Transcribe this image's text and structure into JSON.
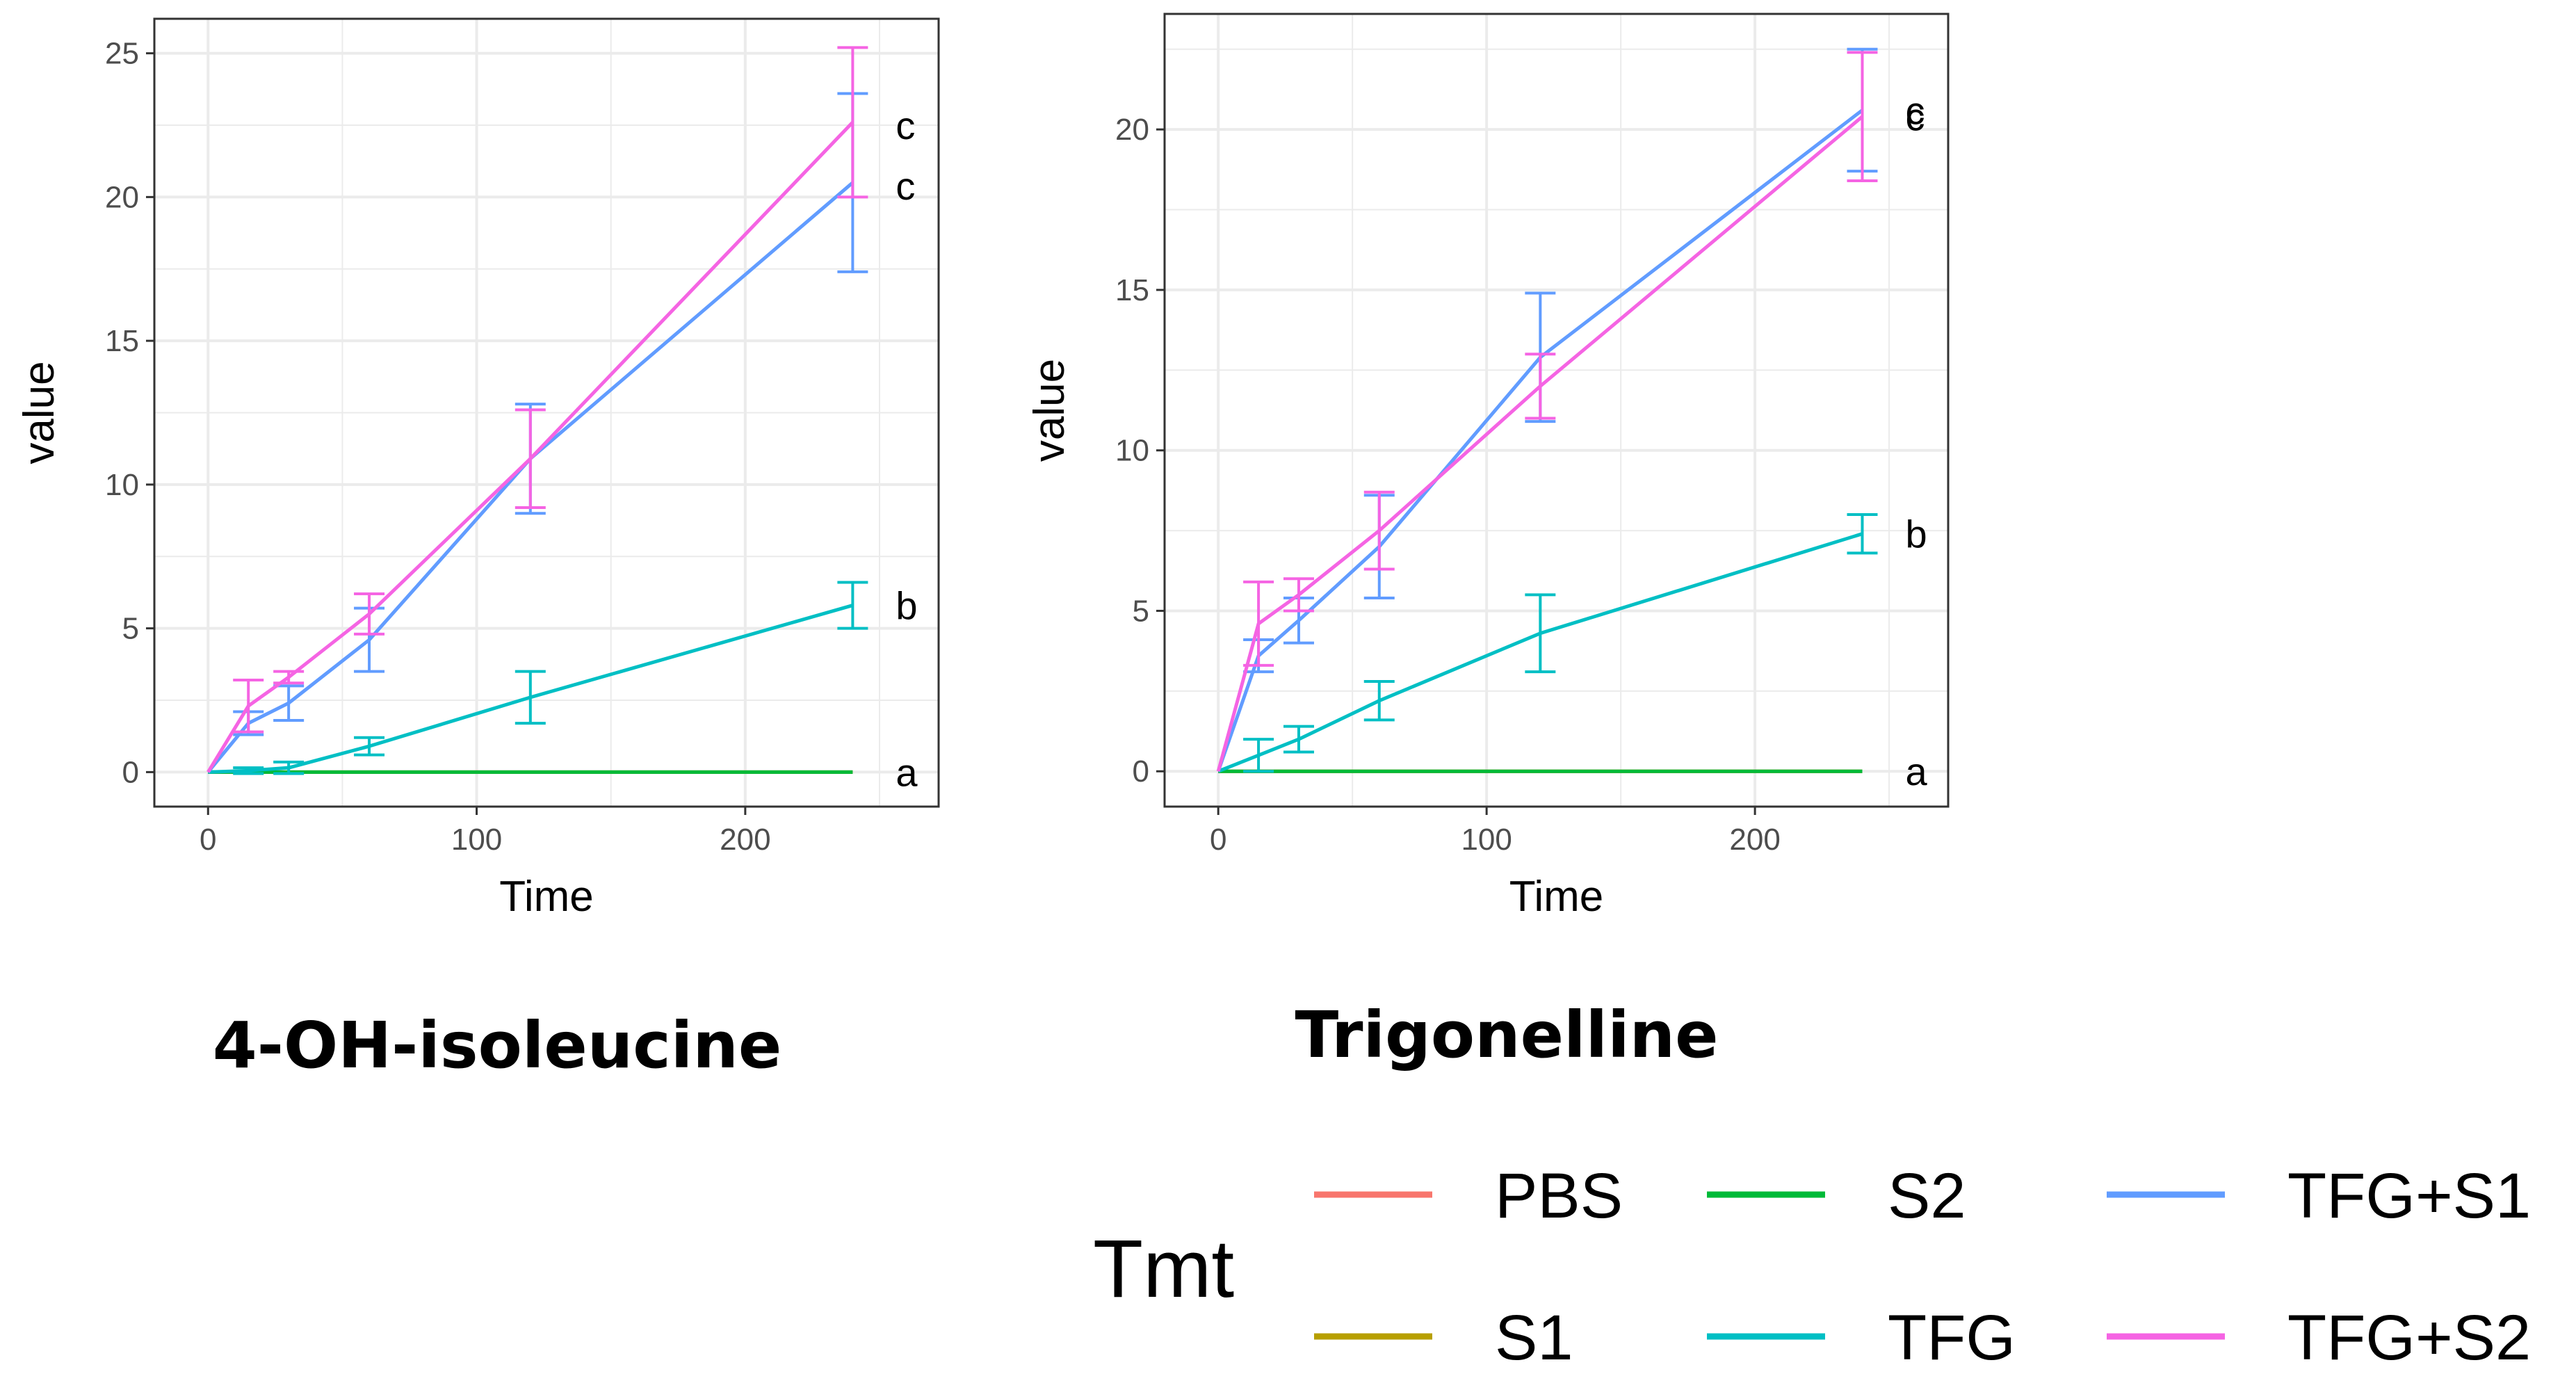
{
  "chart_data": [
    {
      "type": "line",
      "title": "4-OH-isoleucine",
      "xlabel": "Time",
      "ylabel": "value",
      "xlim": [
        -20,
        272
      ],
      "ylim": [
        -1.2,
        26.2
      ],
      "xticks": [
        0,
        100,
        200
      ],
      "yticks": [
        0,
        5,
        10,
        15,
        20,
        25
      ],
      "grid": true,
      "x": [
        0,
        15,
        30,
        60,
        120,
        240
      ],
      "series": [
        {
          "name": "PBS",
          "values": [
            0,
            0,
            0,
            0,
            0,
            0
          ],
          "err": [
            0,
            0,
            0,
            0,
            0,
            0
          ]
        },
        {
          "name": "S1",
          "values": [
            0,
            0,
            0,
            0,
            0,
            0
          ],
          "err": [
            0,
            0,
            0,
            0,
            0,
            0
          ]
        },
        {
          "name": "S2",
          "values": [
            0,
            0,
            0,
            0,
            0,
            0
          ],
          "err": [
            0,
            0,
            0,
            0,
            0,
            0
          ]
        },
        {
          "name": "TFG",
          "values": [
            0,
            0.05,
            0.15,
            0.9,
            2.6,
            5.8
          ],
          "err": [
            0,
            0.1,
            0.2,
            0.3,
            0.9,
            0.8
          ]
        },
        {
          "name": "TFG+S1",
          "values": [
            0,
            1.7,
            2.4,
            4.6,
            10.9,
            20.5
          ],
          "err": [
            0,
            0.4,
            0.6,
            1.1,
            1.9,
            3.1
          ]
        },
        {
          "name": "TFG+S2",
          "values": [
            0,
            2.3,
            3.3,
            5.5,
            10.9,
            22.6
          ],
          "err": [
            0,
            0.9,
            0.2,
            0.7,
            1.7,
            2.6
          ]
        }
      ],
      "significance_labels": [
        {
          "series": "TFG+S2",
          "text": "c",
          "y": 22.5
        },
        {
          "series": "TFG+S1",
          "text": "c",
          "y": 20.4
        },
        {
          "series": "TFG",
          "text": "b",
          "y": 5.8
        },
        {
          "series": "S2",
          "text": "a",
          "y": 0
        }
      ]
    },
    {
      "type": "line",
      "title": "Trigonelline",
      "xlabel": "Time",
      "ylabel": "value",
      "xlim": [
        -20,
        272
      ],
      "ylim": [
        -1.1,
        23.6
      ],
      "xticks": [
        0,
        100,
        200
      ],
      "yticks": [
        0,
        5,
        10,
        15,
        20
      ],
      "grid": true,
      "x": [
        0,
        15,
        30,
        60,
        120,
        240
      ],
      "series": [
        {
          "name": "PBS",
          "values": [
            0,
            0,
            0,
            0,
            0,
            0
          ],
          "err": [
            0,
            0,
            0,
            0,
            0,
            0
          ]
        },
        {
          "name": "S1",
          "values": [
            0,
            0,
            0,
            0,
            0,
            0
          ],
          "err": [
            0,
            0,
            0,
            0,
            0,
            0
          ]
        },
        {
          "name": "S2",
          "values": [
            0,
            0,
            0,
            0,
            0,
            0
          ],
          "err": [
            0,
            0,
            0,
            0,
            0,
            0
          ]
        },
        {
          "name": "TFG",
          "values": [
            0,
            0.5,
            1.0,
            2.2,
            4.3,
            7.4
          ],
          "err": [
            0,
            0.5,
            0.4,
            0.6,
            1.2,
            0.6
          ]
        },
        {
          "name": "TFG+S1",
          "values": [
            0,
            3.6,
            4.7,
            7.0,
            12.9,
            20.6
          ],
          "err": [
            0,
            0.5,
            0.7,
            1.6,
            2.0,
            1.9
          ]
        },
        {
          "name": "TFG+S2",
          "values": [
            0,
            4.6,
            5.5,
            7.5,
            12.0,
            20.4
          ],
          "err": [
            0,
            1.3,
            0.5,
            1.2,
            1.0,
            2.0
          ]
        }
      ],
      "significance_labels": [
        {
          "series": "TFG+S1",
          "text": "c",
          "y": 20.6
        },
        {
          "series": "TFG+S2",
          "text": "c",
          "y": 20.4
        },
        {
          "series": "TFG",
          "text": "b",
          "y": 7.4
        },
        {
          "series": "S2",
          "text": "a",
          "y": 0
        }
      ]
    }
  ],
  "legend": {
    "title": "Tmt",
    "items": [
      {
        "label": "PBS",
        "color": "#F8766D"
      },
      {
        "label": "S1",
        "color": "#B79F00"
      },
      {
        "label": "S2",
        "color": "#00BA38"
      },
      {
        "label": "TFG",
        "color": "#00BFC4"
      },
      {
        "label": "TFG+S1",
        "color": "#619CFF"
      },
      {
        "label": "TFG+S2",
        "color": "#F564E3"
      }
    ]
  },
  "colors": {
    "PBS": "#F8766D",
    "S1": "#B79F00",
    "S2": "#00BA38",
    "TFG": "#00BFC4",
    "TFG+S1": "#619CFF",
    "TFG+S2": "#F564E3",
    "grid": "#ebebeb",
    "panel_border": "#333333"
  }
}
